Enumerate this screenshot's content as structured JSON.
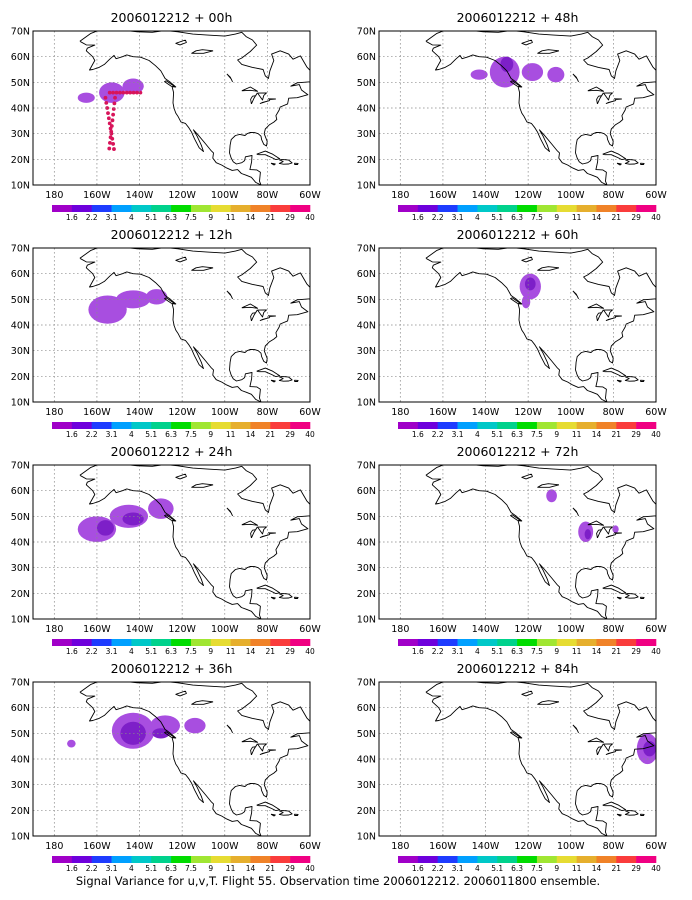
{
  "caption": "Signal Variance for u,v,T. Flight 55. Observation time 2006012212. 2006011800 ensemble.",
  "panels": [
    {
      "title": "2006012212 + 00h"
    },
    {
      "title": "2006012212 + 12h"
    },
    {
      "title": "2006012212 + 24h"
    },
    {
      "title": "2006012212 + 36h"
    },
    {
      "title": "2006012212 + 48h"
    },
    {
      "title": "2006012212 + 60h"
    },
    {
      "title": "2006012212 + 72h"
    },
    {
      "title": "2006012212 + 84h"
    }
  ],
  "lat_labels": [
    "10N",
    "20N",
    "30N",
    "40N",
    "50N",
    "60N",
    "70N"
  ],
  "lon_labels": [
    "180",
    "160W",
    "140W",
    "120W",
    "100W",
    "80W",
    "60W"
  ],
  "colorbar": {
    "labels": [
      "1.6",
      "2.2",
      "3.1",
      "4",
      "5.1",
      "6.3",
      "7.5",
      "9",
      "11",
      "14",
      "21",
      "29",
      "40"
    ],
    "colors": [
      "#a000c8",
      "#6e00dc",
      "#1e3cff",
      "#00a0ff",
      "#00c8c8",
      "#00d28c",
      "#00dc00",
      "#a0e632",
      "#e6dc32",
      "#e6af2d",
      "#f08228",
      "#fa3c3c",
      "#f00082"
    ]
  },
  "map_extent": {
    "lon_min": -190,
    "lon_max": -60,
    "lat_min": 10,
    "lat_max": 70
  },
  "signal_color_outer": "#a84ee0",
  "signal_color_inner": "#7d1fc8",
  "dot_color": "#d8145a"
}
